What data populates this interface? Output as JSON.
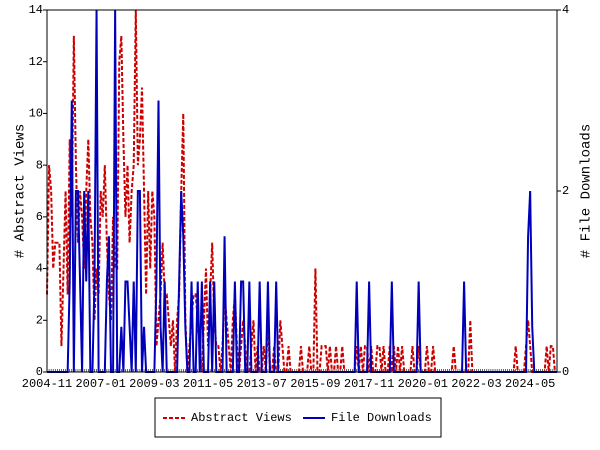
{
  "chart_data": {
    "type": "line",
    "categories": [
      "2004-11",
      null,
      null,
      null,
      null,
      null,
      null,
      null,
      null,
      null,
      null,
      null,
      null,
      null,
      null,
      null,
      null,
      null,
      null,
      null,
      null,
      null,
      null,
      null,
      null,
      null,
      "2007-01",
      null,
      null,
      null,
      null,
      null,
      null,
      null,
      null,
      null,
      null,
      null,
      null,
      null,
      null,
      null,
      null,
      null,
      null,
      null,
      null,
      null,
      null,
      null,
      null,
      null,
      "2009-03",
      null,
      null,
      null,
      null,
      null,
      null,
      null,
      null,
      null,
      null,
      null,
      null,
      null,
      null,
      null,
      null,
      null,
      null,
      null,
      null,
      null,
      null,
      null,
      null,
      null,
      "2011-05",
      null,
      null,
      null,
      null,
      null,
      null,
      null,
      null,
      null,
      null,
      null,
      null,
      null,
      null,
      null,
      null,
      null,
      null,
      null,
      null,
      null,
      null,
      null,
      null,
      null,
      "2013-07",
      null,
      null,
      null,
      null,
      null,
      null,
      null,
      null,
      null,
      null,
      null,
      null,
      null,
      null,
      null,
      null,
      null,
      null,
      null,
      null,
      null,
      null,
      null,
      null,
      null,
      "2015-09",
      null,
      null,
      null,
      null,
      null,
      null,
      null,
      null,
      null,
      null,
      null,
      null,
      null,
      null,
      null,
      null,
      null,
      null,
      null,
      null,
      null,
      null,
      null,
      null,
      null,
      "2017-11",
      null,
      null,
      null,
      null,
      null,
      null,
      null,
      null,
      null,
      null,
      null,
      null,
      null,
      null,
      null,
      null,
      null,
      null,
      null,
      null,
      null,
      null,
      null,
      null,
      null,
      "2020-01",
      null,
      null,
      null,
      null,
      null,
      null,
      null,
      null,
      null,
      null,
      null,
      null,
      null,
      null,
      null,
      null,
      null,
      null,
      null,
      null,
      null,
      null,
      null,
      null,
      null,
      "2022-03",
      null,
      null,
      null,
      null,
      null,
      null,
      null,
      null,
      null,
      null,
      null,
      null,
      null,
      null,
      null,
      null,
      null,
      null,
      null,
      null,
      null,
      null,
      null,
      null,
      null,
      "2024-05",
      null,
      null,
      null,
      null,
      null,
      null,
      null,
      null,
      null,
      null,
      null,
      null,
      null
    ],
    "series": [
      {
        "name": "Abstract Views",
        "color": "#cc0000",
        "dash": true,
        "values": [
          3,
          8,
          7,
          4,
          5,
          5,
          5,
          1,
          4,
          7,
          3,
          9,
          6,
          13,
          8,
          5,
          7,
          6,
          4,
          7,
          9,
          6,
          5,
          2,
          4,
          3,
          7,
          6,
          8,
          5,
          3,
          2,
          6,
          4,
          4,
          12,
          13,
          9,
          6,
          8,
          5,
          7,
          8,
          14,
          8,
          9,
          11,
          7,
          3,
          7,
          4,
          7,
          6,
          1,
          2,
          3,
          5,
          3,
          3,
          2,
          1,
          2,
          0,
          2,
          3,
          7,
          10,
          2,
          0,
          1,
          2,
          3,
          3,
          2,
          1,
          0,
          2,
          4,
          1,
          3,
          5,
          2,
          1,
          1,
          0,
          1,
          3,
          2,
          1,
          0,
          2,
          3,
          1,
          0,
          1,
          2,
          1,
          0,
          0,
          1,
          2,
          0,
          1,
          0,
          0,
          1,
          0,
          2,
          0,
          0,
          1,
          0,
          0,
          2,
          1,
          0,
          0,
          1,
          0,
          0,
          0,
          0,
          0,
          1,
          0,
          0,
          0,
          1,
          0,
          0,
          4,
          0,
          0,
          1,
          1,
          1,
          0,
          1,
          0,
          0,
          1,
          0,
          0,
          1,
          0,
          0,
          0,
          0,
          0,
          0,
          1,
          0,
          1,
          0,
          1,
          1,
          0,
          1,
          0,
          0,
          1,
          1,
          0,
          1,
          0,
          0,
          1,
          0,
          1,
          0,
          1,
          0,
          1,
          0,
          0,
          0,
          0,
          1,
          0,
          0,
          1,
          0,
          0,
          0,
          1,
          0,
          0,
          1,
          0,
          0,
          0,
          0,
          0,
          0,
          0,
          0,
          0,
          1,
          0,
          0,
          0,
          0,
          0,
          0,
          0,
          2,
          0,
          0,
          0,
          0,
          0,
          0,
          0,
          0,
          0,
          0,
          0,
          0,
          0,
          0,
          0,
          0,
          0,
          0,
          0,
          0,
          0,
          1,
          0,
          0,
          0,
          0,
          1,
          2,
          1,
          0,
          0,
          0,
          0,
          0,
          0,
          0,
          1,
          0,
          1,
          1,
          0,
          0
        ]
      },
      {
        "name": "File Downloads",
        "color": "#0000bb",
        "axis": "y2",
        "values": [
          0,
          0,
          0,
          0,
          0,
          0,
          0,
          0,
          0,
          0,
          0,
          1,
          3,
          0,
          2,
          2,
          1,
          0,
          2,
          1,
          2,
          0,
          0,
          1,
          4,
          0,
          0,
          0,
          0,
          1,
          1.5,
          0,
          0,
          4,
          0,
          0,
          0.5,
          0,
          1,
          1,
          0.5,
          0,
          1,
          0,
          2,
          2,
          0,
          0.5,
          0,
          0,
          0,
          0,
          0,
          1,
          3,
          0.5,
          0,
          1,
          0,
          0,
          0,
          0,
          0,
          0,
          1,
          2,
          1.5,
          0.5,
          0,
          0,
          1,
          0,
          0,
          1,
          0,
          1,
          0,
          0,
          0,
          1,
          0,
          1,
          0,
          0,
          0,
          0,
          1.5,
          0,
          0,
          0,
          0,
          1,
          0,
          0,
          1,
          1,
          0,
          0,
          1,
          0,
          0,
          0,
          0,
          1,
          0,
          0,
          0,
          1,
          0,
          0,
          0,
          1,
          0,
          0,
          0,
          0,
          0,
          0,
          0,
          0,
          0,
          0,
          0,
          0,
          0,
          0,
          0,
          0,
          0,
          0,
          0,
          0,
          0,
          0,
          0,
          0,
          0,
          0,
          0,
          0,
          0,
          0,
          0,
          0,
          0,
          0,
          0,
          0,
          0,
          0,
          1,
          0,
          0,
          0,
          0,
          0,
          1,
          0,
          0,
          0,
          0,
          0,
          0,
          0,
          0,
          0,
          0,
          1,
          0,
          0,
          0,
          0,
          0,
          0,
          0,
          0,
          0,
          0,
          0,
          0,
          1,
          0,
          0,
          0,
          0,
          0,
          0,
          0,
          0,
          0,
          0,
          0,
          0,
          0,
          0,
          0,
          0,
          0,
          0,
          0,
          0,
          0,
          1,
          0,
          0,
          0,
          0,
          0,
          0,
          0,
          0,
          0,
          0,
          0,
          0,
          0,
          0,
          0,
          0,
          0,
          0,
          0,
          0,
          0,
          0,
          0,
          0,
          0,
          0,
          0,
          0,
          0,
          0,
          1.5,
          2,
          0.5,
          0,
          0,
          0,
          0,
          0,
          0,
          0,
          0,
          0,
          0,
          0,
          0
        ]
      }
    ],
    "ylabel": "# Abstract Views",
    "y2label": "# File Downloads",
    "ylim": [
      0,
      14
    ],
    "yticks": [
      0,
      2,
      4,
      6,
      8,
      10,
      12,
      14
    ],
    "y2lim": [
      0,
      4
    ],
    "y2ticks": [
      0,
      2,
      4
    ],
    "grid": false,
    "legend": "bottom"
  }
}
